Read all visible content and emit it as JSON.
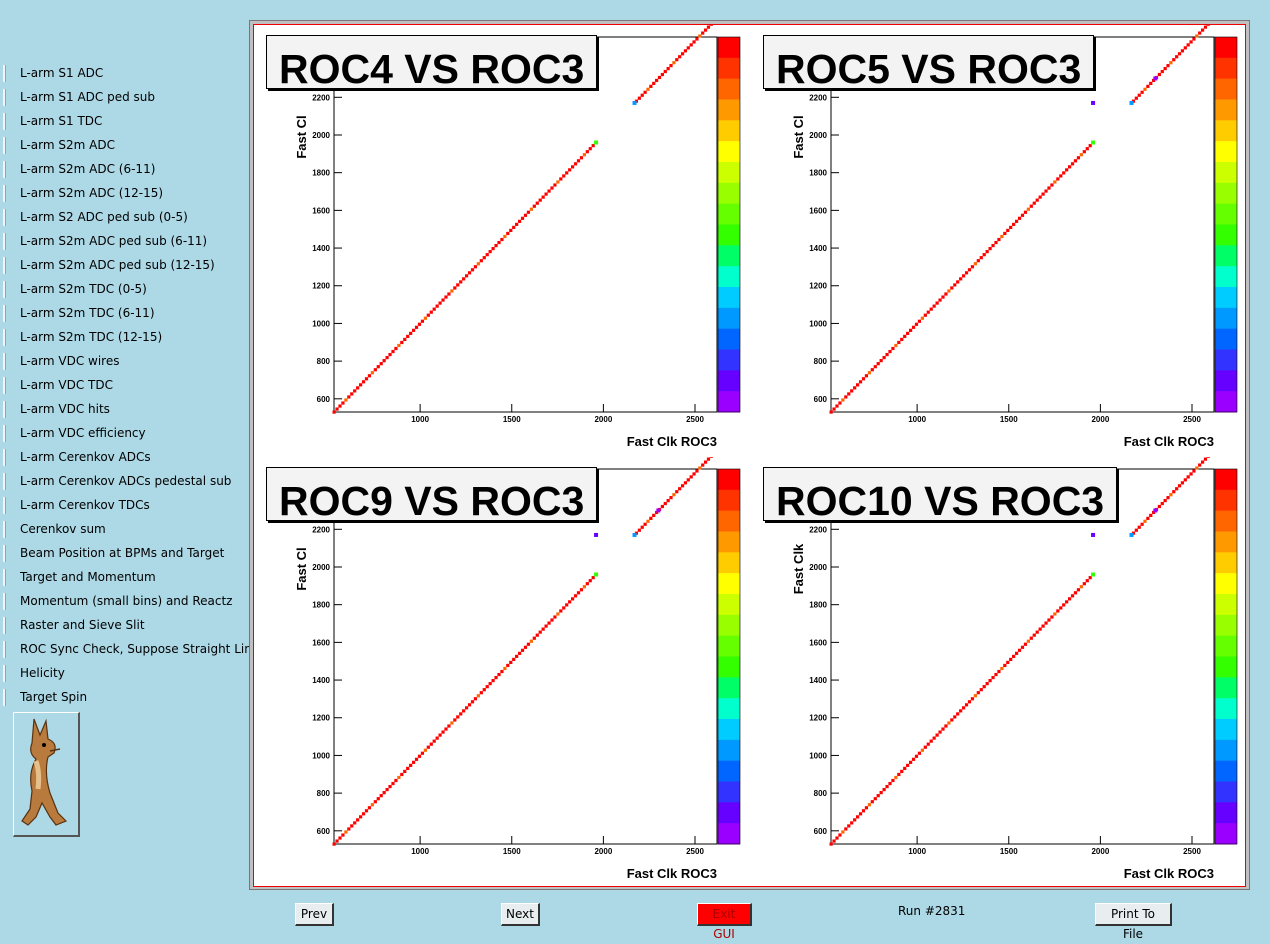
{
  "sidebar": {
    "items": [
      {
        "label": "L-arm S1 ADC"
      },
      {
        "label": "L-arm S1 ADC ped sub"
      },
      {
        "label": "L-arm S1 TDC"
      },
      {
        "label": "L-arm S2m ADC"
      },
      {
        "label": "L-arm S2m ADC (6-11)"
      },
      {
        "label": "L-arm S2m ADC (12-15)"
      },
      {
        "label": "L-arm S2 ADC ped sub (0-5)"
      },
      {
        "label": "L-arm S2m ADC ped sub (6-11)"
      },
      {
        "label": "L-arm S2m ADC ped sub (12-15)"
      },
      {
        "label": "L-arm S2m TDC (0-5)"
      },
      {
        "label": "L-arm S2m TDC (6-11)"
      },
      {
        "label": "L-arm S2m TDC (12-15)"
      },
      {
        "label": "L-arm VDC wires"
      },
      {
        "label": "L-arm VDC TDC"
      },
      {
        "label": "L-arm VDC hits"
      },
      {
        "label": "L-arm VDC efficiency"
      },
      {
        "label": "L-arm Cerenkov ADCs"
      },
      {
        "label": "L-arm Cerenkov ADCs pedestal sub"
      },
      {
        "label": "L-arm Cerenkov TDCs"
      },
      {
        "label": "Cerenkov sum"
      },
      {
        "label": "Beam Position at BPMs and Target"
      },
      {
        "label": "Target and Momentum"
      },
      {
        "label": "Momentum (small bins) and Reactz"
      },
      {
        "label": "Raster and Sieve Slit"
      },
      {
        "label": "ROC Sync Check, Suppose Straight Lines",
        "active": true
      },
      {
        "label": "Helicity"
      },
      {
        "label": "Target Spin"
      }
    ],
    "logo_icon": "coyote-cartoon-icon"
  },
  "pads": [
    {
      "title": "ROC4 VS ROC3"
    },
    {
      "title": "ROC5 VS ROC3"
    },
    {
      "title": "ROC9 VS ROC3"
    },
    {
      "title": "ROC10 VS ROC3"
    }
  ],
  "axis_labels": {
    "xlabel": "Fast Clk ROC3",
    "ylabel": "Fast Cl",
    "ylabel_pad4": "Fast Clk"
  },
  "colors": {
    "background": "#add8e6",
    "palette": [
      "#ff0000",
      "#ff3300",
      "#ff6600",
      "#ff9900",
      "#ffcc00",
      "#ffff00",
      "#ccff00",
      "#99ff00",
      "#66ff00",
      "#33ff00",
      "#00ff66",
      "#00ffcc",
      "#00ccff",
      "#0099ff",
      "#0066ff",
      "#3333ff",
      "#6600ff",
      "#9900ff"
    ]
  },
  "buttons": {
    "prev": "Prev",
    "next": "Next",
    "exit": "Exit GUI",
    "print": "Print To File"
  },
  "status": {
    "run": "Run #2831"
  },
  "chart_data": [
    {
      "type": "heatmap",
      "title": "ROC4 VS ROC3",
      "xlabel": "Fast Clk ROC3",
      "ylabel": "Fast Cl",
      "xlim": [
        530,
        2620
      ],
      "ylim": [
        530,
        2520
      ],
      "xticks": [
        1000,
        1500,
        2000,
        2500
      ],
      "yticks": [
        600,
        800,
        1000,
        1200,
        1400,
        1600,
        1800,
        2000,
        2200
      ],
      "segments": [
        {
          "from": [
            530,
            530
          ],
          "to": [
            1960,
            1960
          ]
        },
        {
          "from": [
            2180,
            2180
          ],
          "to": [
            2620,
            2620
          ]
        }
      ],
      "points": [
        {
          "x": 1960,
          "y": 1960,
          "color": "#33ff00"
        },
        {
          "x": 2170,
          "y": 2170,
          "color": "#0099ff"
        }
      ]
    },
    {
      "type": "heatmap",
      "title": "ROC5 VS ROC3",
      "xlabel": "Fast Clk ROC3",
      "ylabel": "Fast Cl",
      "xlim": [
        530,
        2620
      ],
      "ylim": [
        530,
        2520
      ],
      "xticks": [
        1000,
        1500,
        2000,
        2500
      ],
      "yticks": [
        600,
        800,
        1000,
        1200,
        1400,
        1600,
        1800,
        2000,
        2200
      ],
      "segments": [
        {
          "from": [
            530,
            530
          ],
          "to": [
            1960,
            1960
          ]
        },
        {
          "from": [
            2180,
            2180
          ],
          "to": [
            2620,
            2620
          ]
        }
      ],
      "points": [
        {
          "x": 1960,
          "y": 1960,
          "color": "#33ff00"
        },
        {
          "x": 2170,
          "y": 2170,
          "color": "#0099ff"
        },
        {
          "x": 1960,
          "y": 2170,
          "color": "#6600ff"
        },
        {
          "x": 2300,
          "y": 2300,
          "color": "#9900ff"
        }
      ]
    },
    {
      "type": "heatmap",
      "title": "ROC9 VS ROC3",
      "xlabel": "Fast Clk ROC3",
      "ylabel": "Fast Cl",
      "xlim": [
        530,
        2620
      ],
      "ylim": [
        530,
        2520
      ],
      "xticks": [
        1000,
        1500,
        2000,
        2500
      ],
      "yticks": [
        600,
        800,
        1000,
        1200,
        1400,
        1600,
        1800,
        2000,
        2200
      ],
      "segments": [
        {
          "from": [
            530,
            530
          ],
          "to": [
            1960,
            1960
          ]
        },
        {
          "from": [
            2180,
            2180
          ],
          "to": [
            2620,
            2620
          ]
        }
      ],
      "points": [
        {
          "x": 1960,
          "y": 1960,
          "color": "#33ff00"
        },
        {
          "x": 2170,
          "y": 2170,
          "color": "#0099ff"
        },
        {
          "x": 1960,
          "y": 2170,
          "color": "#6600ff"
        },
        {
          "x": 2300,
          "y": 2300,
          "color": "#9900ff"
        }
      ]
    },
    {
      "type": "heatmap",
      "title": "ROC10 VS ROC3",
      "xlabel": "Fast Clk ROC3",
      "ylabel": "Fast Clk",
      "xlim": [
        530,
        2620
      ],
      "ylim": [
        530,
        2520
      ],
      "xticks": [
        1000,
        1500,
        2000,
        2500
      ],
      "yticks": [
        600,
        800,
        1000,
        1200,
        1400,
        1600,
        1800,
        2000,
        2200
      ],
      "segments": [
        {
          "from": [
            530,
            530
          ],
          "to": [
            1960,
            1960
          ]
        },
        {
          "from": [
            2180,
            2180
          ],
          "to": [
            2620,
            2620
          ]
        }
      ],
      "points": [
        {
          "x": 1960,
          "y": 1960,
          "color": "#33ff00"
        },
        {
          "x": 2170,
          "y": 2170,
          "color": "#0099ff"
        },
        {
          "x": 1960,
          "y": 2170,
          "color": "#6600ff"
        },
        {
          "x": 2300,
          "y": 2300,
          "color": "#9900ff"
        }
      ]
    }
  ]
}
